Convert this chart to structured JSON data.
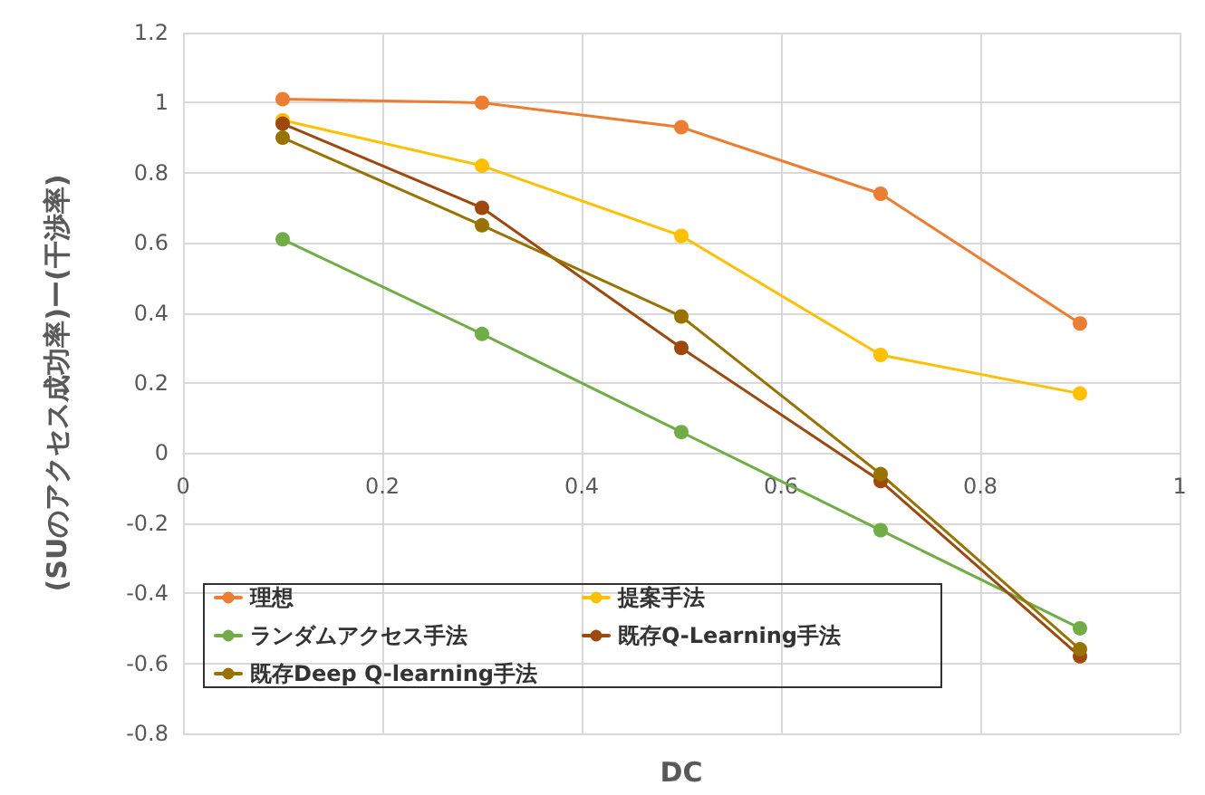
{
  "chart_data": {
    "type": "line",
    "xlabel": "DC",
    "ylabel": "(SUのアクセス成功率)ー(干渉率)",
    "x": [
      0.1,
      0.3,
      0.5,
      0.7,
      0.9
    ],
    "series": [
      {
        "name": "理想",
        "color": "#ed7d31",
        "values": [
          1.01,
          1.0,
          0.93,
          0.74,
          0.37
        ]
      },
      {
        "name": "提案手法",
        "color": "#ffc000",
        "values": [
          0.95,
          0.82,
          0.62,
          0.28,
          0.17
        ]
      },
      {
        "name": "ランダムアクセス手法",
        "color": "#70ad47",
        "values": [
          0.61,
          0.34,
          0.06,
          -0.22,
          -0.5
        ]
      },
      {
        "name": "既存Q-Learning手法",
        "color": "#9e480e",
        "values": [
          0.94,
          0.7,
          0.3,
          -0.08,
          -0.58
        ]
      },
      {
        "name": "既存Deep Q-learning手法",
        "color": "#997300",
        "values": [
          0.9,
          0.65,
          0.39,
          -0.06,
          -0.56
        ]
      }
    ],
    "xlim": [
      0,
      1
    ],
    "xticks": [
      0,
      0.2,
      0.4,
      0.6,
      0.8,
      1
    ],
    "ylim": [
      -0.8,
      1.2
    ],
    "yticks": [
      -0.8,
      -0.6,
      -0.4,
      -0.2,
      0,
      0.2,
      0.4,
      0.6,
      0.8,
      1,
      1.2
    ],
    "grid": true,
    "legend": "bottom left",
    "marker": "circle",
    "line_style": "solid"
  }
}
